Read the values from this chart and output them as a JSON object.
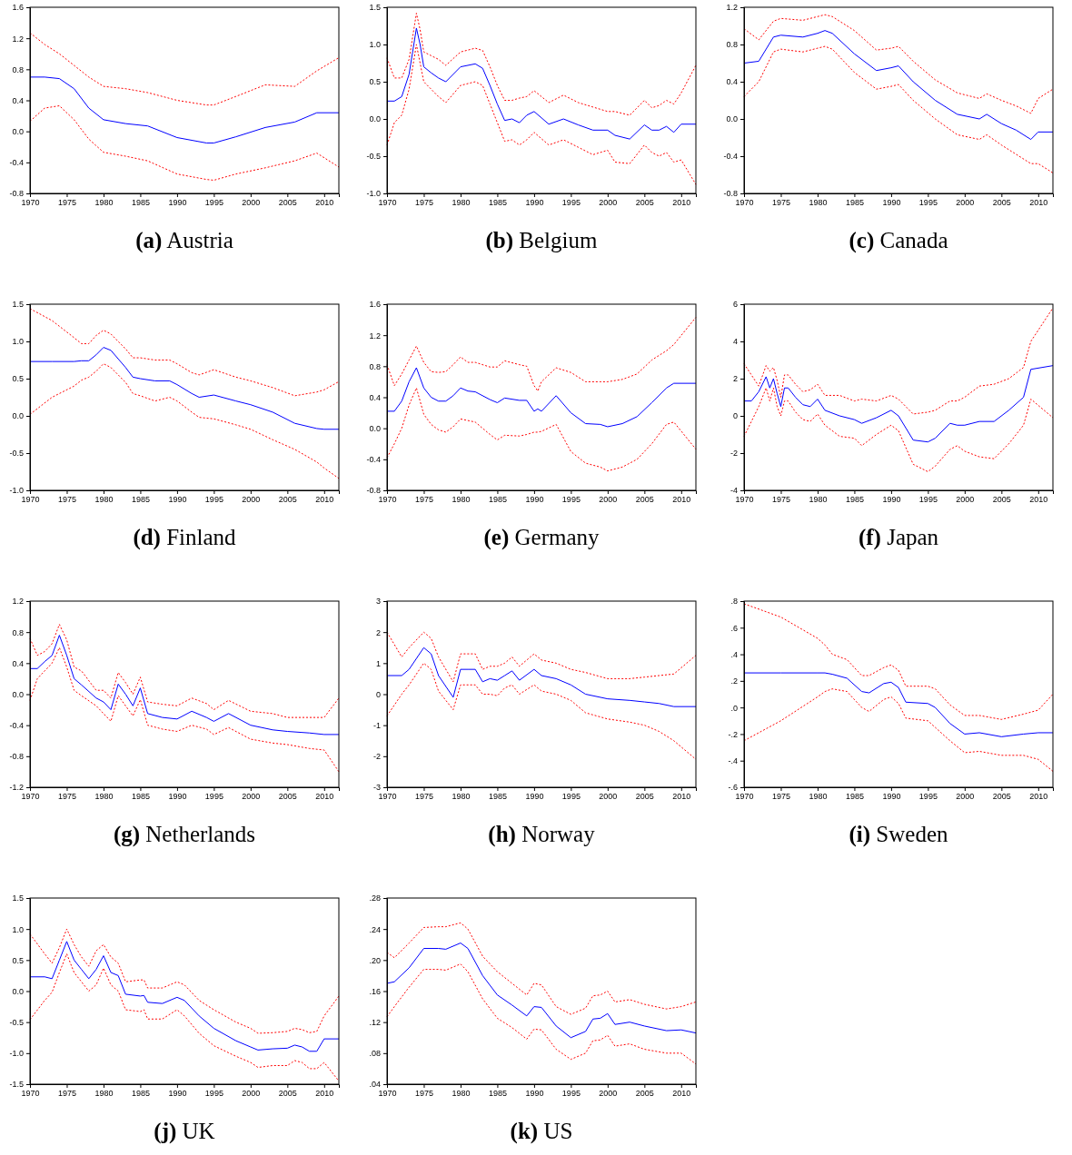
{
  "chart_data": [
    {
      "type": "line",
      "title": "(a) Austria",
      "x": [
        1970,
        1972,
        1974,
        1976,
        1978,
        1980,
        1983,
        1986,
        1990,
        1994,
        1995,
        1998,
        2002,
        2006,
        2009,
        2012
      ],
      "xlim": [
        1970,
        2012
      ],
      "xticks": [
        1970,
        1975,
        1980,
        1985,
        1990,
        1995,
        2000,
        2005,
        2010
      ],
      "ylim": [
        -0.8,
        1.6
      ],
      "yticks": [
        {
          "value": -0.8,
          "label": "-0.8"
        },
        {
          "value": -0.4,
          "label": "-0.4"
        },
        {
          "value": 0,
          "label": "0.0"
        },
        {
          "value": 0.4,
          "label": "0.4"
        },
        {
          "value": 0.8,
          "label": "0.8"
        },
        {
          "value": 1.2,
          "label": "1.2"
        },
        {
          "value": 1.6,
          "label": "1.6"
        }
      ],
      "series": [
        {
          "color": "#0000ff",
          "line_style": "solid",
          "values": [
            0.7,
            0.7,
            0.68,
            0.55,
            0.3,
            0.15,
            0.1,
            0.07,
            -0.08,
            -0.15,
            -0.15,
            -0.07,
            0.05,
            0.12,
            0.24,
            0.24
          ]
        },
        {
          "color": "#ff0000",
          "line_style": "dotted",
          "values": [
            1.27,
            1.12,
            1.0,
            0.85,
            0.7,
            0.58,
            0.55,
            0.5,
            0.4,
            0.34,
            0.34,
            0.45,
            0.6,
            0.58,
            0.78,
            0.95
          ]
        },
        {
          "color": "#ff0000",
          "line_style": "dotted",
          "values": [
            0.13,
            0.3,
            0.33,
            0.15,
            -0.1,
            -0.27,
            -0.32,
            -0.38,
            -0.55,
            -0.62,
            -0.63,
            -0.55,
            -0.47,
            -0.38,
            -0.28,
            -0.46
          ]
        }
      ]
    },
    {
      "type": "line",
      "title": "(b) Belgium",
      "x": [
        1970,
        1971,
        1972,
        1973,
        1974,
        1974.5,
        1975,
        1976,
        1977,
        1978,
        1980,
        1982,
        1983,
        1984,
        1985,
        1986,
        1987,
        1988,
        1989,
        1990,
        1992,
        1994,
        1996,
        1998,
        2000,
        2001,
        2003,
        2005,
        2006,
        2007,
        2008,
        2009,
        2010,
        2012
      ],
      "xlim": [
        1970,
        2012
      ],
      "xticks": [
        1970,
        1975,
        1980,
        1985,
        1990,
        1995,
        2000,
        2005,
        2010
      ],
      "ylim": [
        -1,
        1.5
      ],
      "yticks": [
        {
          "value": -1,
          "label": "-1.0"
        },
        {
          "value": -0.5,
          "label": "-0.5"
        },
        {
          "value": 0,
          "label": "0.0"
        },
        {
          "value": 0.5,
          "label": "0.5"
        },
        {
          "value": 1,
          "label": "1.0"
        },
        {
          "value": 1.5,
          "label": "1.5"
        }
      ],
      "series": [
        {
          "color": "#0000ff",
          "line_style": "solid",
          "values": [
            0.24,
            0.24,
            0.3,
            0.6,
            1.22,
            1.0,
            0.7,
            0.62,
            0.55,
            0.5,
            0.7,
            0.74,
            0.68,
            0.45,
            0.2,
            -0.02,
            0.0,
            -0.05,
            0.05,
            0.1,
            -0.07,
            0.0,
            -0.08,
            -0.15,
            -0.15,
            -0.22,
            -0.27,
            -0.08,
            -0.15,
            -0.15,
            -0.1,
            -0.18,
            -0.07,
            -0.07
          ]
        },
        {
          "color": "#ff0000",
          "line_style": "dotted",
          "values": [
            0.82,
            0.55,
            0.55,
            0.8,
            1.42,
            1.2,
            0.9,
            0.85,
            0.8,
            0.72,
            0.9,
            0.95,
            0.92,
            0.7,
            0.45,
            0.25,
            0.25,
            0.28,
            0.3,
            0.38,
            0.22,
            0.32,
            0.22,
            0.16,
            0.1,
            0.1,
            0.05,
            0.25,
            0.15,
            0.18,
            0.25,
            0.2,
            0.35,
            0.72
          ]
        },
        {
          "color": "#ff0000",
          "line_style": "dotted",
          "values": [
            -0.35,
            -0.05,
            0.05,
            0.4,
            1.0,
            0.75,
            0.5,
            0.4,
            0.3,
            0.22,
            0.45,
            0.5,
            0.45,
            0.2,
            -0.05,
            -0.3,
            -0.28,
            -0.35,
            -0.28,
            -0.18,
            -0.35,
            -0.28,
            -0.38,
            -0.48,
            -0.42,
            -0.58,
            -0.6,
            -0.35,
            -0.45,
            -0.5,
            -0.45,
            -0.58,
            -0.55,
            -0.88
          ]
        }
      ]
    },
    {
      "type": "line",
      "title": "(c) Canada",
      "x": [
        1970,
        1972,
        1974,
        1975,
        1978,
        1980,
        1981,
        1982,
        1985,
        1988,
        1990,
        1991,
        1993,
        1996,
        1999,
        2002,
        2003,
        2005,
        2007,
        2009,
        2010,
        2012
      ],
      "xlim": [
        1970,
        2012
      ],
      "xticks": [
        1970,
        1975,
        1980,
        1985,
        1990,
        1995,
        2000,
        2005,
        2010
      ],
      "ylim": [
        -0.8,
        1.2
      ],
      "yticks": [
        {
          "value": -0.8,
          "label": "-0.8"
        },
        {
          "value": -0.4,
          "label": "-0.4"
        },
        {
          "value": 0,
          "label": "0.0"
        },
        {
          "value": 0.4,
          "label": "0.4"
        },
        {
          "value": 0.8,
          "label": "0.8"
        },
        {
          "value": 1.2,
          "label": "1.2"
        }
      ],
      "series": [
        {
          "color": "#0000ff",
          "line_style": "solid",
          "values": [
            0.6,
            0.62,
            0.88,
            0.9,
            0.88,
            0.92,
            0.95,
            0.92,
            0.7,
            0.52,
            0.55,
            0.57,
            0.4,
            0.2,
            0.05,
            0.0,
            0.05,
            -0.05,
            -0.12,
            -0.22,
            -0.14,
            -0.14
          ]
        },
        {
          "color": "#ff0000",
          "line_style": "dotted",
          "values": [
            0.97,
            0.85,
            1.05,
            1.08,
            1.06,
            1.1,
            1.12,
            1.1,
            0.95,
            0.74,
            0.76,
            0.78,
            0.62,
            0.42,
            0.28,
            0.22,
            0.27,
            0.2,
            0.14,
            0.06,
            0.22,
            0.32
          ]
        },
        {
          "color": "#ff0000",
          "line_style": "dotted",
          "values": [
            0.24,
            0.4,
            0.72,
            0.75,
            0.72,
            0.76,
            0.78,
            0.75,
            0.5,
            0.32,
            0.35,
            0.37,
            0.2,
            0.0,
            -0.17,
            -0.22,
            -0.17,
            -0.28,
            -0.38,
            -0.48,
            -0.48,
            -0.58
          ]
        }
      ]
    },
    {
      "type": "line",
      "title": "(d) Finland",
      "x": [
        1970,
        1973,
        1976,
        1977,
        1978,
        1979,
        1980,
        1981,
        1983,
        1984,
        1985,
        1987,
        1989,
        1990,
        1992,
        1993,
        1995,
        1998,
        2000,
        2003,
        2006,
        2009,
        2010,
        2012
      ],
      "xlim": [
        1970,
        2012
      ],
      "xticks": [
        1970,
        1975,
        1980,
        1985,
        1990,
        1995,
        2000,
        2005,
        2010
      ],
      "ylim": [
        -1,
        1.5
      ],
      "yticks": [
        {
          "value": -1,
          "label": "-1.0"
        },
        {
          "value": -0.5,
          "label": "-0.5"
        },
        {
          "value": 0,
          "label": "0.0"
        },
        {
          "value": 0.5,
          "label": "0.5"
        },
        {
          "value": 1,
          "label": "1.0"
        },
        {
          "value": 1.5,
          "label": "1.5"
        }
      ],
      "series": [
        {
          "color": "#0000ff",
          "line_style": "solid",
          "values": [
            0.73,
            0.73,
            0.73,
            0.74,
            0.74,
            0.82,
            0.92,
            0.88,
            0.65,
            0.52,
            0.5,
            0.47,
            0.47,
            0.42,
            0.3,
            0.25,
            0.28,
            0.2,
            0.15,
            0.05,
            -0.1,
            -0.17,
            -0.18,
            -0.18
          ]
        },
        {
          "color": "#ff0000",
          "line_style": "dotted",
          "values": [
            1.44,
            1.28,
            1.05,
            0.97,
            0.97,
            1.08,
            1.15,
            1.1,
            0.9,
            0.78,
            0.78,
            0.75,
            0.75,
            0.7,
            0.58,
            0.55,
            0.62,
            0.52,
            0.47,
            0.38,
            0.27,
            0.32,
            0.35,
            0.46
          ]
        },
        {
          "color": "#ff0000",
          "line_style": "dotted",
          "values": [
            0.02,
            0.25,
            0.4,
            0.48,
            0.52,
            0.6,
            0.7,
            0.65,
            0.45,
            0.3,
            0.27,
            0.2,
            0.25,
            0.2,
            0.05,
            -0.02,
            -0.04,
            -0.12,
            -0.18,
            -0.32,
            -0.45,
            -0.62,
            -0.7,
            -0.84
          ]
        }
      ]
    },
    {
      "type": "line",
      "title": "(e) Germany",
      "x": [
        1970,
        1971,
        1972,
        1973,
        1974,
        1975,
        1976,
        1977,
        1978,
        1979,
        1980,
        1981,
        1982,
        1984,
        1985,
        1986,
        1988,
        1989,
        1990,
        1990.5,
        1991,
        1993,
        1995,
        1997,
        1999,
        2000,
        2002,
        2004,
        2006,
        2008,
        2009,
        2012
      ],
      "xlim": [
        1970,
        2012
      ],
      "xticks": [
        1970,
        1975,
        1980,
        1985,
        1990,
        1995,
        2000,
        2005,
        2010
      ],
      "ylim": [
        -0.8,
        1.6
      ],
      "yticks": [
        {
          "value": -0.8,
          "label": "-0.8"
        },
        {
          "value": -0.4,
          "label": "-0.4"
        },
        {
          "value": 0,
          "label": "0.0"
        },
        {
          "value": 0.4,
          "label": "0.4"
        },
        {
          "value": 0.8,
          "label": "0.8"
        },
        {
          "value": 1.2,
          "label": "1.2"
        },
        {
          "value": 1.6,
          "label": "1.6"
        }
      ],
      "series": [
        {
          "color": "#0000ff",
          "line_style": "solid",
          "values": [
            0.22,
            0.22,
            0.35,
            0.6,
            0.78,
            0.52,
            0.4,
            0.35,
            0.35,
            0.42,
            0.52,
            0.48,
            0.47,
            0.37,
            0.33,
            0.39,
            0.36,
            0.36,
            0.22,
            0.25,
            0.22,
            0.42,
            0.2,
            0.06,
            0.05,
            0.02,
            0.06,
            0.15,
            0.33,
            0.52,
            0.58,
            0.58
          ]
        },
        {
          "color": "#ff0000",
          "line_style": "dotted",
          "values": [
            0.82,
            0.55,
            0.7,
            0.88,
            1.06,
            0.85,
            0.73,
            0.72,
            0.73,
            0.82,
            0.92,
            0.85,
            0.85,
            0.79,
            0.79,
            0.87,
            0.82,
            0.8,
            0.55,
            0.48,
            0.6,
            0.78,
            0.72,
            0.6,
            0.6,
            0.6,
            0.63,
            0.7,
            0.88,
            1.0,
            1.08,
            1.43
          ]
        },
        {
          "color": "#ff0000",
          "line_style": "dotted",
          "values": [
            -0.38,
            -0.2,
            0.0,
            0.3,
            0.52,
            0.18,
            0.05,
            -0.02,
            -0.05,
            0.02,
            0.12,
            0.1,
            0.08,
            -0.08,
            -0.15,
            -0.09,
            -0.1,
            -0.08,
            -0.05,
            -0.05,
            -0.04,
            0.05,
            -0.3,
            -0.45,
            -0.5,
            -0.55,
            -0.5,
            -0.4,
            -0.2,
            0.05,
            0.08,
            -0.27
          ]
        }
      ]
    },
    {
      "type": "line",
      "title": "(f) Japan",
      "x": [
        1970,
        1971,
        1972,
        1973,
        1973.5,
        1974,
        1974.5,
        1975,
        1975.5,
        1976,
        1977,
        1978,
        1979,
        1980,
        1981,
        1983,
        1985,
        1986,
        1988,
        1990,
        1991,
        1993,
        1995,
        1996,
        1998,
        1999,
        2000,
        2002,
        2004,
        2006,
        2008,
        2009,
        2012
      ],
      "xlim": [
        1970,
        2012
      ],
      "xticks": [
        1970,
        1975,
        1980,
        1985,
        1990,
        1995,
        2000,
        2005,
        2010
      ],
      "ylim": [
        -4,
        6
      ],
      "yticks": [
        -4,
        -2,
        0,
        2,
        4,
        6
      ],
      "series": [
        {
          "color": "#0000ff",
          "line_style": "solid",
          "values": [
            0.8,
            0.8,
            1.3,
            2.1,
            1.5,
            2.0,
            1.2,
            0.5,
            1.5,
            1.5,
            1.0,
            0.6,
            0.5,
            0.9,
            0.3,
            0,
            -0.2,
            -0.4,
            -0.1,
            0.3,
            0,
            -1.3,
            -1.4,
            -1.2,
            -0.4,
            -0.5,
            -0.5,
            -0.3,
            -0.3,
            0.3,
            1.0,
            2.5,
            2.7
          ]
        },
        {
          "color": "#ff0000",
          "line_style": "dotted",
          "values": [
            2.8,
            2.2,
            1.6,
            2.7,
            2.4,
            2.6,
            1.9,
            1.0,
            2.2,
            2.2,
            1.7,
            1.3,
            1.4,
            1.7,
            1.1,
            1.1,
            0.8,
            0.9,
            0.8,
            1.1,
            0.9,
            0.1,
            0.2,
            0.3,
            0.8,
            0.8,
            1.0,
            1.6,
            1.7,
            2.0,
            2.6,
            4.0,
            5.8
          ]
        },
        {
          "color": "#ff0000",
          "line_style": "dotted",
          "values": [
            -1.1,
            -0.3,
            0.5,
            1.5,
            0.8,
            1.5,
            0.5,
            0,
            0.8,
            0.8,
            0.2,
            -0.2,
            -0.3,
            0.1,
            -0.5,
            -1.1,
            -1.2,
            -1.6,
            -1.0,
            -0.5,
            -0.8,
            -2.6,
            -3.0,
            -2.7,
            -1.8,
            -1.6,
            -1.9,
            -2.2,
            -2.3,
            -1.5,
            -0.5,
            0.9,
            -0.1
          ]
        }
      ]
    },
    {
      "type": "line",
      "title": "(g) Netherlands",
      "x": [
        1970,
        1971,
        1972,
        1973,
        1974,
        1975,
        1976,
        1977,
        1979,
        1980,
        1981,
        1982,
        1983,
        1984,
        1985,
        1986,
        1988,
        1990,
        1992,
        1994,
        1995,
        1997,
        2000,
        2003,
        2005,
        2008,
        2010,
        2012
      ],
      "xlim": [
        1970,
        2012
      ],
      "xticks": [
        1970,
        1975,
        1980,
        1985,
        1990,
        1995,
        2000,
        2005,
        2010
      ],
      "ylim": [
        -1.2,
        1.2
      ],
      "yticks": [
        {
          "value": -1.2,
          "label": "-1.2"
        },
        {
          "value": -0.8,
          "label": "-0.8"
        },
        {
          "value": -0.4,
          "label": "-0.4"
        },
        {
          "value": 0,
          "label": "0.0"
        },
        {
          "value": 0.4,
          "label": "0.4"
        },
        {
          "value": 0.8,
          "label": "0.8"
        },
        {
          "value": 1.2,
          "label": "1.2"
        }
      ],
      "series": [
        {
          "color": "#0000ff",
          "line_style": "solid",
          "values": [
            0.33,
            0.33,
            0.42,
            0.5,
            0.76,
            0.5,
            0.2,
            0.12,
            -0.05,
            -0.1,
            -0.2,
            0.13,
            0.0,
            -0.15,
            0.08,
            -0.25,
            -0.3,
            -0.32,
            -0.22,
            -0.3,
            -0.35,
            -0.25,
            -0.4,
            -0.46,
            -0.48,
            -0.5,
            -0.52,
            -0.52
          ]
        },
        {
          "color": "#ff0000",
          "line_style": "dotted",
          "values": [
            0.72,
            0.5,
            0.55,
            0.65,
            0.9,
            0.7,
            0.35,
            0.3,
            0.05,
            0.05,
            -0.05,
            0.28,
            0.15,
            0.0,
            0.22,
            -0.1,
            -0.13,
            -0.15,
            -0.05,
            -0.12,
            -0.2,
            -0.08,
            -0.22,
            -0.25,
            -0.3,
            -0.3,
            -0.3,
            -0.05
          ]
        },
        {
          "color": "#ff0000",
          "line_style": "dotted",
          "values": [
            -0.08,
            0.2,
            0.3,
            0.4,
            0.6,
            0.35,
            0.05,
            -0.02,
            -0.15,
            -0.25,
            -0.35,
            -0.02,
            -0.15,
            -0.28,
            -0.07,
            -0.4,
            -0.45,
            -0.48,
            -0.4,
            -0.45,
            -0.52,
            -0.43,
            -0.58,
            -0.63,
            -0.65,
            -0.7,
            -0.72,
            -1.0
          ]
        }
      ]
    },
    {
      "type": "line",
      "title": "(h) Norway",
      "x": [
        1970,
        1972,
        1973,
        1975,
        1976,
        1977,
        1979,
        1980,
        1981,
        1982,
        1983,
        1984,
        1985,
        1986,
        1987,
        1988,
        1990,
        1991,
        1993,
        1995,
        1997,
        2000,
        2003,
        2005,
        2007,
        2009,
        2012
      ],
      "xlim": [
        1970,
        2012
      ],
      "xticks": [
        1970,
        1975,
        1980,
        1985,
        1990,
        1995,
        2000,
        2005,
        2010
      ],
      "ylim": [
        -3,
        3
      ],
      "yticks": [
        -3,
        -2,
        -1,
        0,
        1,
        2,
        3
      ],
      "series": [
        {
          "color": "#0000ff",
          "line_style": "solid",
          "values": [
            0.6,
            0.6,
            0.8,
            1.5,
            1.3,
            0.6,
            -0.1,
            0.8,
            0.8,
            0.8,
            0.4,
            0.5,
            0.45,
            0.6,
            0.75,
            0.45,
            0.8,
            0.6,
            0.5,
            0.3,
            0.0,
            -0.15,
            -0.2,
            -0.25,
            -0.3,
            -0.4,
            -0.4
          ]
        },
        {
          "color": "#ff0000",
          "line_style": "dotted",
          "values": [
            2.0,
            1.2,
            1.5,
            2.0,
            1.8,
            1.2,
            0.4,
            1.3,
            1.3,
            1.3,
            0.8,
            0.9,
            0.9,
            1.0,
            1.2,
            0.9,
            1.3,
            1.1,
            1.0,
            0.8,
            0.7,
            0.5,
            0.5,
            0.55,
            0.6,
            0.65,
            1.25
          ]
        },
        {
          "color": "#ff0000",
          "line_style": "dotted",
          "values": [
            -0.7,
            0.0,
            0.3,
            1.0,
            0.8,
            0.1,
            -0.5,
            0.3,
            0.3,
            0.3,
            0.0,
            0.0,
            -0.05,
            0.2,
            0.3,
            0.0,
            0.3,
            0.1,
            0.0,
            -0.2,
            -0.6,
            -0.8,
            -0.9,
            -1.0,
            -1.2,
            -1.5,
            -2.1
          ]
        }
      ]
    },
    {
      "type": "line",
      "title": "(i) Sweden",
      "x": [
        1970,
        1975,
        1980,
        1981,
        1982,
        1984,
        1986,
        1987,
        1989,
        1990,
        1991,
        1992,
        1995,
        1996,
        1998,
        2000,
        2002,
        2005,
        2008,
        2010,
        2012
      ],
      "xlim": [
        1970,
        2012
      ],
      "xticks": [
        1970,
        1975,
        1980,
        1985,
        1990,
        1995,
        2000,
        2005,
        2010
      ],
      "ylim": [
        -0.6,
        0.8
      ],
      "yticks": [
        {
          "value": -0.6,
          "label": "-.6"
        },
        {
          "value": -0.4,
          "label": "-.4"
        },
        {
          "value": -0.2,
          "label": "-.2"
        },
        {
          "value": 0,
          "label": ".0"
        },
        {
          "value": 0.2,
          "label": ".2"
        },
        {
          "value": 0.4,
          "label": ".4"
        },
        {
          "value": 0.6,
          "label": ".6"
        },
        {
          "value": 0.8,
          "label": ".8"
        }
      ],
      "series": [
        {
          "color": "#0000ff",
          "line_style": "solid",
          "values": [
            0.26,
            0.26,
            0.26,
            0.26,
            0.25,
            0.22,
            0.12,
            0.11,
            0.18,
            0.19,
            0.15,
            0.04,
            0.03,
            0.0,
            -0.12,
            -0.2,
            -0.19,
            -0.22,
            -0.2,
            -0.19,
            -0.19
          ]
        },
        {
          "color": "#ff0000",
          "line_style": "dotted",
          "values": [
            0.78,
            0.68,
            0.52,
            0.47,
            0.4,
            0.36,
            0.24,
            0.24,
            0.3,
            0.32,
            0.28,
            0.16,
            0.16,
            0.14,
            0.02,
            -0.06,
            -0.06,
            -0.09,
            -0.05,
            -0.02,
            0.1
          ]
        },
        {
          "color": "#ff0000",
          "line_style": "dotted",
          "values": [
            -0.25,
            -0.1,
            0.08,
            0.12,
            0.14,
            0.12,
            0.0,
            -0.03,
            0.06,
            0.08,
            0.03,
            -0.08,
            -0.1,
            -0.15,
            -0.25,
            -0.34,
            -0.33,
            -0.36,
            -0.36,
            -0.39,
            -0.48
          ]
        }
      ]
    },
    {
      "type": "line",
      "title": "(j) UK",
      "x": [
        1970,
        1972,
        1973,
        1974,
        1975,
        1976,
        1977,
        1978,
        1979,
        1980,
        1981,
        1982,
        1983,
        1985,
        1985.5,
        1986,
        1988,
        1990,
        1991,
        1993,
        1995,
        1998,
        2000,
        2001,
        2003,
        2005,
        2006,
        2007,
        2008,
        2009,
        2010,
        2012
      ],
      "xlim": [
        1970,
        2012
      ],
      "xticks": [
        1970,
        1975,
        1980,
        1985,
        1990,
        1995,
        2000,
        2005,
        2010
      ],
      "ylim": [
        -1.5,
        1.5
      ],
      "yticks": [
        {
          "value": -1.5,
          "label": "-1.5"
        },
        {
          "value": -1,
          "label": "-1.0"
        },
        {
          "value": -0.5,
          "label": "-0.5"
        },
        {
          "value": 0,
          "label": "0.0"
        },
        {
          "value": 0.5,
          "label": "0.5"
        },
        {
          "value": 1,
          "label": "1.0"
        },
        {
          "value": 1.5,
          "label": "1.5"
        }
      ],
      "series": [
        {
          "color": "#0000ff",
          "line_style": "solid",
          "values": [
            0.23,
            0.23,
            0.2,
            0.5,
            0.8,
            0.5,
            0.35,
            0.2,
            0.35,
            0.57,
            0.3,
            0.25,
            -0.05,
            -0.08,
            -0.07,
            -0.18,
            -0.2,
            -0.1,
            -0.15,
            -0.4,
            -0.6,
            -0.8,
            -0.9,
            -0.95,
            -0.93,
            -0.92,
            -0.87,
            -0.9,
            -0.97,
            -0.97,
            -0.77,
            -0.77
          ]
        },
        {
          "color": "#ff0000",
          "line_style": "dotted",
          "values": [
            0.92,
            0.6,
            0.45,
            0.7,
            1.0,
            0.75,
            0.55,
            0.4,
            0.65,
            0.75,
            0.55,
            0.45,
            0.15,
            0.18,
            0.18,
            0.05,
            0.05,
            0.15,
            0.1,
            -0.15,
            -0.3,
            -0.5,
            -0.6,
            -0.68,
            -0.67,
            -0.65,
            -0.6,
            -0.62,
            -0.67,
            -0.65,
            -0.4,
            -0.08
          ]
        },
        {
          "color": "#ff0000",
          "line_style": "dotted",
          "values": [
            -0.46,
            -0.15,
            -0.02,
            0.3,
            0.6,
            0.3,
            0.15,
            0.0,
            0.1,
            0.37,
            0.1,
            0.0,
            -0.3,
            -0.33,
            -0.3,
            -0.45,
            -0.45,
            -0.3,
            -0.4,
            -0.68,
            -0.88,
            -1.05,
            -1.15,
            -1.23,
            -1.2,
            -1.2,
            -1.12,
            -1.15,
            -1.25,
            -1.25,
            -1.15,
            -1.45
          ]
        }
      ]
    },
    {
      "type": "line",
      "title": "(k) US",
      "x": [
        1970,
        1971,
        1973,
        1975,
        1977,
        1978,
        1980,
        1981,
        1983,
        1985,
        1987,
        1989,
        1990,
        1991,
        1993,
        1995,
        1997,
        1998,
        1999,
        2000,
        2001,
        2003,
        2005,
        2008,
        2010,
        2012
      ],
      "xlim": [
        1970,
        2012
      ],
      "xticks": [
        1970,
        1975,
        1980,
        1985,
        1990,
        1995,
        2000,
        2005,
        2010
      ],
      "ylim": [
        0.04,
        0.28
      ],
      "yticks": [
        {
          "value": 0.04,
          "label": ".04"
        },
        {
          "value": 0.08,
          "label": ".08"
        },
        {
          "value": 0.12,
          "label": ".12"
        },
        {
          "value": 0.16,
          "label": ".16"
        },
        {
          "value": 0.2,
          "label": ".20"
        },
        {
          "value": 0.24,
          "label": ".24"
        },
        {
          "value": 0.28,
          "label": ".28"
        }
      ],
      "series": [
        {
          "color": "#0000ff",
          "line_style": "solid",
          "values": [
            0.17,
            0.172,
            0.19,
            0.215,
            0.215,
            0.214,
            0.222,
            0.215,
            0.18,
            0.155,
            0.142,
            0.128,
            0.14,
            0.139,
            0.115,
            0.1,
            0.108,
            0.124,
            0.125,
            0.131,
            0.117,
            0.12,
            0.115,
            0.109,
            0.11,
            0.106
          ]
        },
        {
          "color": "#ff0000",
          "line_style": "dotted",
          "values": [
            0.21,
            0.203,
            0.222,
            0.242,
            0.243,
            0.243,
            0.248,
            0.24,
            0.205,
            0.185,
            0.17,
            0.155,
            0.17,
            0.168,
            0.14,
            0.13,
            0.138,
            0.154,
            0.155,
            0.16,
            0.146,
            0.149,
            0.143,
            0.137,
            0.14,
            0.146
          ]
        },
        {
          "color": "#ff0000",
          "line_style": "dotted",
          "values": [
            0.127,
            0.14,
            0.165,
            0.188,
            0.188,
            0.187,
            0.195,
            0.185,
            0.15,
            0.125,
            0.113,
            0.098,
            0.111,
            0.11,
            0.085,
            0.072,
            0.08,
            0.096,
            0.097,
            0.103,
            0.089,
            0.092,
            0.085,
            0.08,
            0.08,
            0.066
          ]
        }
      ]
    }
  ]
}
